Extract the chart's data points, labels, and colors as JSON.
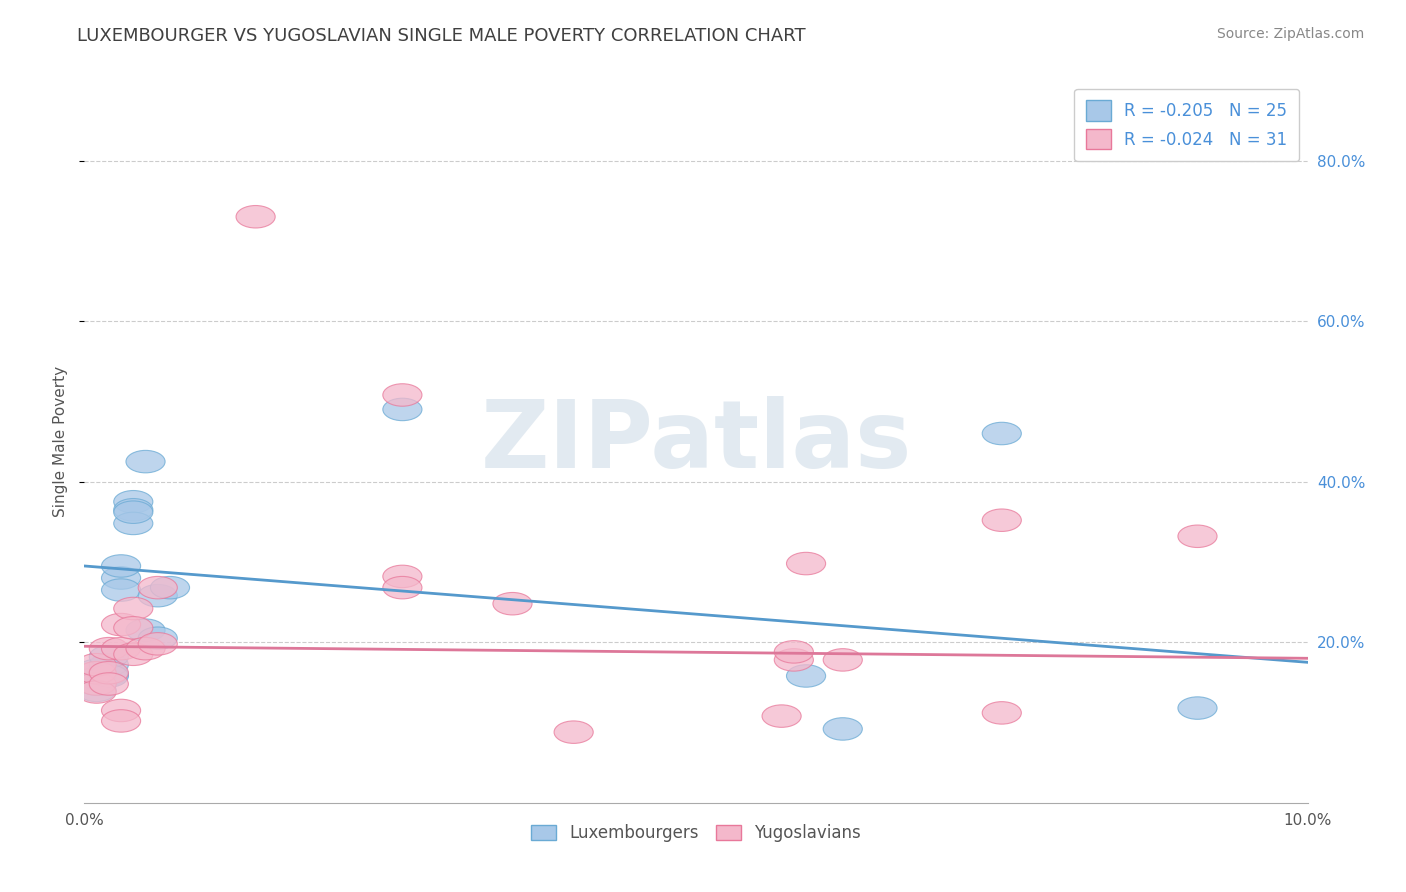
{
  "title": "LUXEMBOURGER VS YUGOSLAVIAN SINGLE MALE POVERTY CORRELATION CHART",
  "source_text": "Source: ZipAtlas.com",
  "ylabel": "Single Male Poverty",
  "xlim": [
    0.0,
    0.1
  ],
  "ylim": [
    0.0,
    0.9
  ],
  "xtick_vals": [
    0.0,
    0.1
  ],
  "xtick_labels": [
    "0.0%",
    "10.0%"
  ],
  "ytick_vals": [
    0.2,
    0.4,
    0.6,
    0.8
  ],
  "ytick_labels": [
    "20.0%",
    "40.0%",
    "60.0%",
    "80.0%"
  ],
  "lux_color": "#a8c8e8",
  "yugo_color": "#f4b8cb",
  "lux_edge_color": "#6aaad4",
  "yugo_edge_color": "#e8789a",
  "lux_line_color": "#5599cc",
  "yugo_line_color": "#dd7799",
  "lux_R": -0.205,
  "lux_N": 25,
  "yugo_R": -0.024,
  "yugo_N": 31,
  "watermark": "ZIPatlas",
  "lux_scatter": [
    [
      0.001,
      0.155
    ],
    [
      0.001,
      0.165
    ],
    [
      0.001,
      0.14
    ],
    [
      0.001,
      0.148
    ],
    [
      0.002,
      0.16
    ],
    [
      0.002,
      0.172
    ],
    [
      0.002,
      0.182
    ],
    [
      0.002,
      0.158
    ],
    [
      0.003,
      0.28
    ],
    [
      0.003,
      0.295
    ],
    [
      0.003,
      0.265
    ],
    [
      0.004,
      0.375
    ],
    [
      0.004,
      0.365
    ],
    [
      0.004,
      0.348
    ],
    [
      0.004,
      0.362
    ],
    [
      0.005,
      0.425
    ],
    [
      0.005,
      0.215
    ],
    [
      0.006,
      0.258
    ],
    [
      0.006,
      0.205
    ],
    [
      0.007,
      0.268
    ],
    [
      0.026,
      0.49
    ],
    [
      0.059,
      0.158
    ],
    [
      0.062,
      0.092
    ],
    [
      0.075,
      0.46
    ],
    [
      0.091,
      0.118
    ]
  ],
  "yugo_scatter": [
    [
      0.001,
      0.148
    ],
    [
      0.001,
      0.162
    ],
    [
      0.001,
      0.172
    ],
    [
      0.001,
      0.138
    ],
    [
      0.002,
      0.192
    ],
    [
      0.002,
      0.162
    ],
    [
      0.002,
      0.148
    ],
    [
      0.003,
      0.222
    ],
    [
      0.003,
      0.192
    ],
    [
      0.003,
      0.115
    ],
    [
      0.003,
      0.102
    ],
    [
      0.004,
      0.242
    ],
    [
      0.004,
      0.185
    ],
    [
      0.004,
      0.218
    ],
    [
      0.005,
      0.192
    ],
    [
      0.006,
      0.198
    ],
    [
      0.006,
      0.268
    ],
    [
      0.014,
      0.73
    ],
    [
      0.026,
      0.508
    ],
    [
      0.026,
      0.282
    ],
    [
      0.026,
      0.268
    ],
    [
      0.035,
      0.248
    ],
    [
      0.04,
      0.088
    ],
    [
      0.057,
      0.108
    ],
    [
      0.058,
      0.178
    ],
    [
      0.058,
      0.188
    ],
    [
      0.059,
      0.298
    ],
    [
      0.062,
      0.178
    ],
    [
      0.075,
      0.112
    ],
    [
      0.075,
      0.352
    ],
    [
      0.091,
      0.332
    ]
  ],
  "lux_line_x": [
    0.0,
    0.1
  ],
  "lux_line_y": [
    0.295,
    0.175
  ],
  "yugo_line_x": [
    0.0,
    0.1
  ],
  "yugo_line_y": [
    0.195,
    0.18
  ],
  "background_color": "#ffffff",
  "grid_color": "#cccccc",
  "title_color": "#404040",
  "legend_label_lux": "Luxembourgers",
  "legend_label_yugo": "Yugoslavians",
  "title_fontsize": 13,
  "axis_label_fontsize": 11,
  "tick_fontsize": 11,
  "legend_fontsize": 12,
  "source_fontsize": 10,
  "right_tick_color": "#4a90d9"
}
